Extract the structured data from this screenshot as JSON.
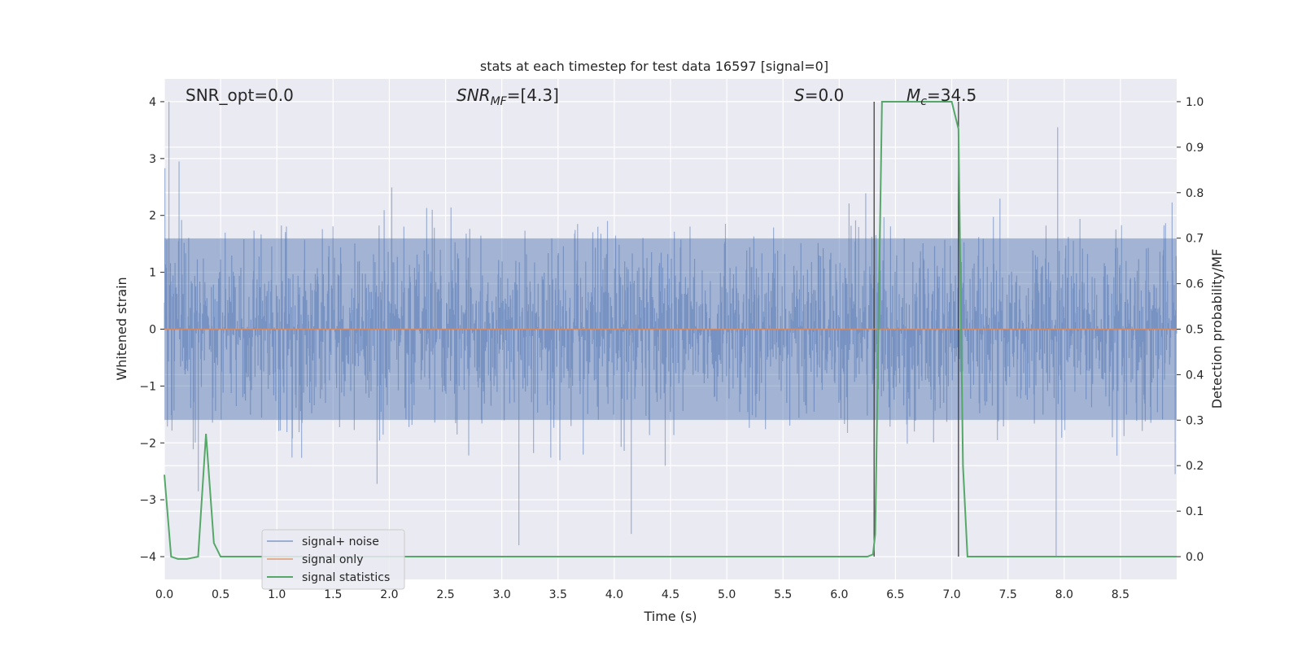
{
  "chart_data": {
    "type": "line",
    "title": "stats at each timestep for test data 16597 [signal=0]",
    "xlabel": "Time (s)",
    "ylabel": "Whitened strain",
    "ylabel_right": "Detection probability/MF",
    "xlim": [
      0.0,
      9.0
    ],
    "ylim": [
      -4.4,
      4.4
    ],
    "ylim_right": [
      -0.05,
      1.05
    ],
    "x_ticks": [
      0.0,
      0.5,
      1.0,
      1.5,
      2.0,
      2.5,
      3.0,
      3.5,
      4.0,
      4.5,
      5.0,
      5.5,
      6.0,
      6.5,
      7.0,
      7.5,
      8.0,
      8.5
    ],
    "x_tick_labels": [
      "0.0",
      "0.5",
      "1.0",
      "1.5",
      "2.0",
      "2.5",
      "3.0",
      "3.5",
      "4.0",
      "4.5",
      "5.0",
      "5.5",
      "6.0",
      "6.5",
      "7.0",
      "7.5",
      "8.0",
      "8.5"
    ],
    "y_ticks": [
      4,
      3,
      2,
      1,
      0,
      -1,
      -2,
      -3,
      -4
    ],
    "y_tick_labels": [
      "4",
      "3",
      "2",
      "1",
      "0",
      "−1",
      "−2",
      "−3",
      "−4"
    ],
    "y_ticks_right": [
      1.0,
      0.9,
      0.8,
      0.7,
      0.6,
      0.5,
      0.4,
      0.3,
      0.2,
      0.1,
      0.0
    ],
    "y_tick_labels_right": [
      "1.0",
      "0.9",
      "0.8",
      "0.7",
      "0.6",
      "0.5",
      "0.4",
      "0.3",
      "0.2",
      "0.1",
      "0.0"
    ],
    "grid": true,
    "legend_position": "lower-left",
    "annotations": {
      "snr_opt": "SNR_opt=0.0",
      "snr_mf_main": "SNR",
      "snr_mf_sub": "MF",
      "snr_mf_value": "=[4.3]",
      "s_main": "S",
      "s_value": "=0.0",
      "mc_main": "M",
      "mc_sub": "c",
      "mc_value": "=34.5"
    },
    "vertical_markers_x": [
      6.31,
      7.06
    ],
    "noise_series": {
      "name": "signal+ noise",
      "color": "#4c72b0",
      "samples": 2000,
      "core_amplitude": 1.6,
      "notable_peaks": [
        {
          "x": 0.04,
          "y": 4.0
        },
        {
          "x": 0.13,
          "y": 2.95
        },
        {
          "x": 3.15,
          "y": -3.8
        },
        {
          "x": 4.15,
          "y": -3.6
        },
        {
          "x": 7.93,
          "y": -4.0
        },
        {
          "x": 7.94,
          "y": 3.55
        }
      ]
    },
    "series": [
      {
        "name": "signal only",
        "color": "#dd8452",
        "axis": "left",
        "x": [
          0.0,
          9.0
        ],
        "y": [
          0.0,
          0.0
        ]
      },
      {
        "name": "signal statistics",
        "color": "#55a868",
        "axis": "right",
        "x": [
          0.0,
          0.06,
          0.12,
          0.2,
          0.3,
          0.37,
          0.44,
          0.5,
          0.6,
          1.0,
          2.0,
          3.0,
          4.0,
          5.0,
          6.0,
          6.25,
          6.3,
          6.32,
          6.38,
          6.5,
          7.0,
          7.06,
          7.1,
          7.14,
          7.2,
          8.0,
          9.0
        ],
        "y": [
          0.18,
          0.0,
          -0.005,
          -0.005,
          0.0,
          0.27,
          0.03,
          0.0,
          0.0,
          0.0,
          0.0,
          0.0,
          0.0,
          0.0,
          0.0,
          0.0,
          0.005,
          0.05,
          1.0,
          1.0,
          1.0,
          0.94,
          0.2,
          0.0,
          0.0,
          0.0,
          0.0
        ]
      }
    ]
  }
}
